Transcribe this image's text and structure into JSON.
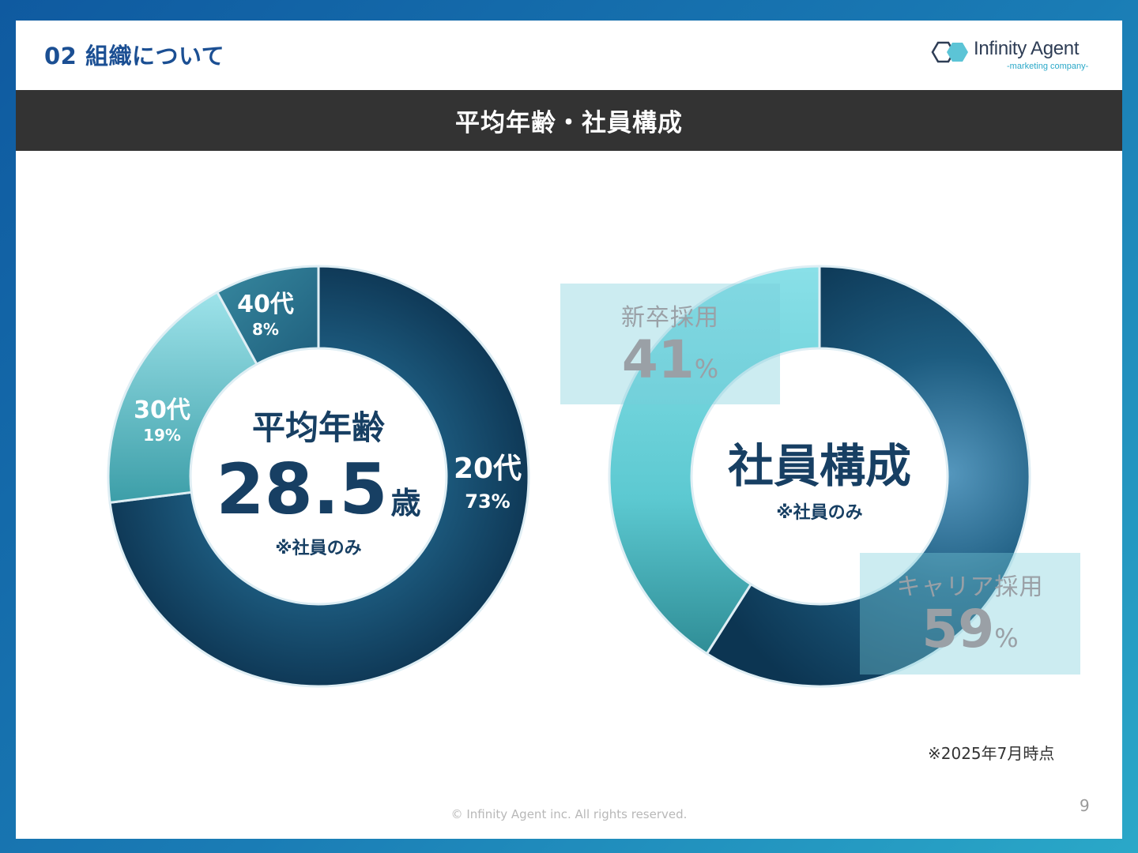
{
  "header": {
    "section_title": "02 組織について",
    "band_title": "平均年齢・社員構成",
    "logo_name": "Infinity Agent",
    "logo_sub": "-marketing company-"
  },
  "chart_data": [
    {
      "type": "pie",
      "subtype": "donut",
      "categories": [
        "20代",
        "30代",
        "40代"
      ],
      "values": [
        73,
        19,
        8
      ],
      "value_labels": [
        "73%",
        "19%",
        "8%"
      ],
      "center": {
        "title": "平均年齢",
        "value": "28.5",
        "unit": "歳",
        "note": "※社員のみ"
      },
      "colors": [
        "#1d5c80",
        "#5cc4cf",
        "#2b7894"
      ]
    },
    {
      "type": "pie",
      "subtype": "donut",
      "categories": [
        "キャリア採用",
        "新卒採用"
      ],
      "values": [
        59,
        41
      ],
      "value_numbers": [
        "59",
        "41"
      ],
      "unit": "%",
      "center": {
        "title": "社員構成",
        "note": "※社員のみ"
      },
      "colors": [
        "#1b5a80",
        "#62d0d8"
      ]
    }
  ],
  "footer": {
    "as_of": "※2025年7月時点",
    "copyright": "© Infinity Agent inc. All rights reserved.",
    "page_number": "9"
  }
}
